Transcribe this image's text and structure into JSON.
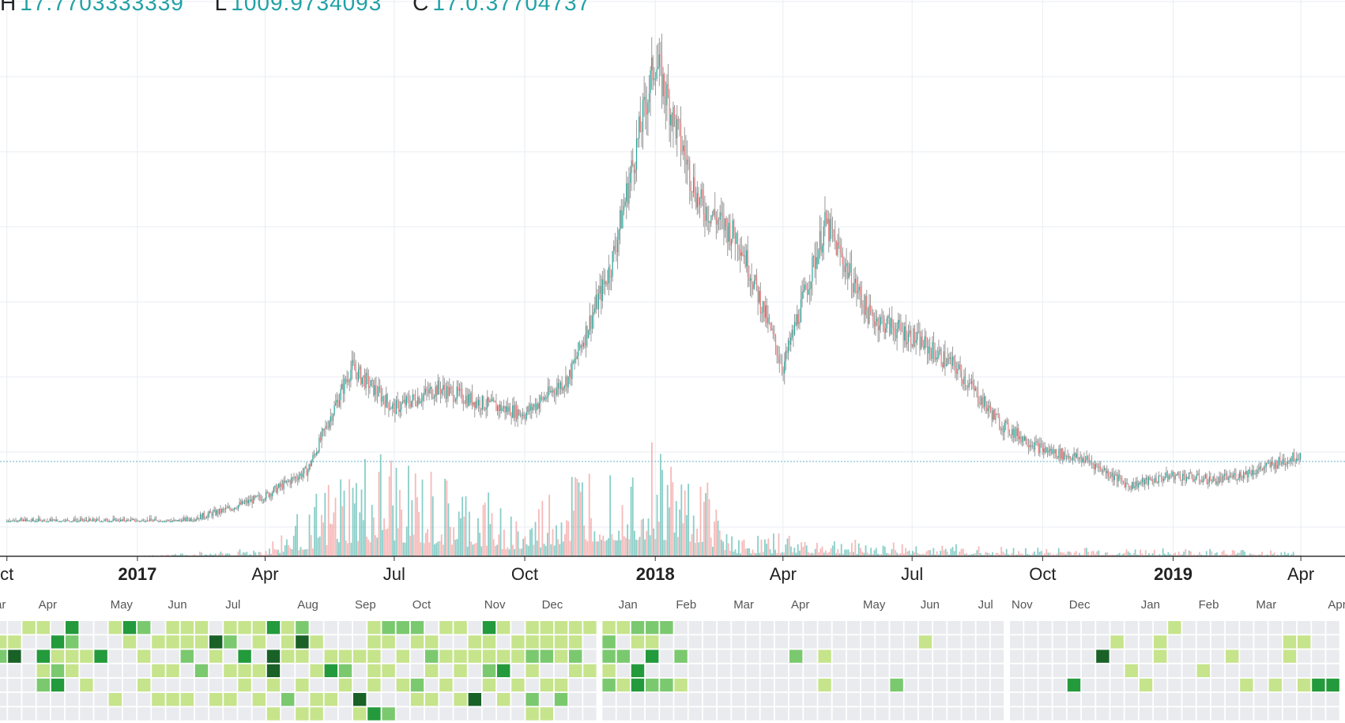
{
  "header": {
    "items": [
      {
        "key": "H",
        "value": "17.7703333339"
      },
      {
        "key": "L",
        "value": "1009.9734093"
      },
      {
        "key": "C",
        "value": "17.0.37704737"
      }
    ]
  },
  "colors": {
    "up": "#2aa59a",
    "down": "#ef7f7f",
    "grid": "#e8eef3",
    "axis_text": "#222222",
    "price_line": "#64b5c5",
    "cal_empty": "#e9ebee",
    "cal_levels": [
      "#c6e48b",
      "#7bc96f",
      "#239a3b",
      "#196127"
    ]
  },
  "chart_data": [
    {
      "type": "line",
      "title": "",
      "series_style": "candlestick with volume",
      "x_axis_labels": [
        {
          "label": "ct",
          "date": "2016-10",
          "bold": false
        },
        {
          "label": "2017",
          "date": "2017-01",
          "bold": true
        },
        {
          "label": "Apr",
          "date": "2017-04",
          "bold": false
        },
        {
          "label": "Jul",
          "date": "2017-07",
          "bold": false
        },
        {
          "label": "Oct",
          "date": "2017-10",
          "bold": false
        },
        {
          "label": "2018",
          "date": "2018-01",
          "bold": true
        },
        {
          "label": "Apr",
          "date": "2018-04",
          "bold": false
        },
        {
          "label": "Jul",
          "date": "2018-07",
          "bold": false
        },
        {
          "label": "Oct",
          "date": "2018-10",
          "bold": false
        },
        {
          "label": "2019",
          "date": "2019-01",
          "bold": true
        },
        {
          "label": "Apr",
          "date": "2019-04",
          "bold": false
        }
      ],
      "price_relative": {
        "note": "y axis unlabeled in crop; values relative to peak (1.0)",
        "x": [
          "2016-10",
          "2016-12",
          "2017-01",
          "2017-02",
          "2017-03",
          "2017-04",
          "2017-05",
          "2017-06",
          "2017-07",
          "2017-08",
          "2017-09",
          "2017-10",
          "2017-11",
          "2017-12",
          "2018-01",
          "2018-02",
          "2018-03",
          "2018-04",
          "2018-05",
          "2018-06",
          "2018-07",
          "2018-08",
          "2018-09",
          "2018-10",
          "2018-11",
          "2018-12",
          "2019-01",
          "2019-02",
          "2019-03",
          "2019-04"
        ],
        "y": [
          0.0,
          0.0,
          0.0,
          0.0,
          0.02,
          0.05,
          0.1,
          0.3,
          0.22,
          0.26,
          0.23,
          0.21,
          0.28,
          0.5,
          0.9,
          0.62,
          0.55,
          0.3,
          0.58,
          0.4,
          0.36,
          0.3,
          0.19,
          0.14,
          0.12,
          0.07,
          0.09,
          0.08,
          0.1,
          0.13
        ]
      },
      "last_price_line_relative": 0.117,
      "volume_relative": {
        "x": [
          "2016-10",
          "2017-01",
          "2017-04",
          "2017-06",
          "2017-07",
          "2017-08",
          "2017-09",
          "2017-10",
          "2017-11",
          "2017-12",
          "2018-01",
          "2018-02",
          "2018-03",
          "2018-04",
          "2018-06",
          "2018-09",
          "2019-01",
          "2019-04"
        ],
        "y": [
          0.0,
          0.0,
          0.05,
          0.5,
          0.55,
          0.4,
          0.35,
          0.2,
          0.5,
          0.6,
          0.65,
          0.5,
          0.1,
          0.12,
          0.08,
          0.05,
          0.04,
          0.03
        ]
      }
    },
    {
      "type": "heatmap",
      "title": "",
      "month_labels": [
        {
          "label": "ar",
          "col": 0
        },
        {
          "label": "Apr",
          "col": 3
        },
        {
          "label": "May",
          "col": 8
        },
        {
          "label": "Jun",
          "col": 12
        },
        {
          "label": "Jul",
          "col": 16
        },
        {
          "label": "Aug",
          "col": 21
        },
        {
          "label": "Sep",
          "col": 25
        },
        {
          "label": "Oct",
          "col": 29
        },
        {
          "label": "Nov",
          "col": 34
        },
        {
          "label": "Dec",
          "col": 38
        },
        {
          "label": "Jan",
          "col": 43
        },
        {
          "label": "Feb",
          "col": 47
        },
        {
          "label": "Mar",
          "col": 51
        },
        {
          "label": "Apr",
          "col": 55
        },
        {
          "label": "May",
          "col": 60
        },
        {
          "label": "Jun",
          "col": 64
        },
        {
          "label": "Jul",
          "col": 68
        },
        {
          "label": "Nov",
          "col": 70
        },
        {
          "label": "Dec",
          "col": 74
        },
        {
          "label": "Jan",
          "col": 79
        },
        {
          "label": "Feb",
          "col": 83
        },
        {
          "label": "Mar",
          "col": 87
        },
        {
          "label": "Apr",
          "col": 92
        }
      ],
      "rows": 7,
      "columns": 94,
      "separators_after_col": [
        41,
        69
      ],
      "cells": [
        [
          0,
          1,
          1
        ],
        [
          0,
          2,
          2
        ],
        [
          1,
          1,
          1
        ],
        [
          1,
          2,
          4
        ],
        [
          2,
          0,
          1
        ],
        [
          3,
          0,
          1
        ],
        [
          3,
          2,
          3
        ],
        [
          3,
          3,
          1
        ],
        [
          3,
          4,
          2
        ],
        [
          4,
          1,
          3
        ],
        [
          4,
          2,
          1
        ],
        [
          4,
          3,
          2
        ],
        [
          4,
          4,
          3
        ],
        [
          5,
          0,
          3
        ],
        [
          5,
          1,
          2
        ],
        [
          5,
          2,
          1
        ],
        [
          5,
          3,
          1
        ],
        [
          6,
          2,
          1
        ],
        [
          6,
          4,
          1
        ],
        [
          7,
          2,
          3
        ],
        [
          8,
          0,
          1
        ],
        [
          8,
          5,
          1
        ],
        [
          9,
          0,
          3
        ],
        [
          9,
          1,
          1
        ],
        [
          10,
          0,
          2
        ],
        [
          10,
          2,
          1
        ],
        [
          10,
          4,
          1
        ],
        [
          11,
          1,
          1
        ],
        [
          11,
          3,
          1
        ],
        [
          11,
          5,
          1
        ],
        [
          12,
          0,
          1
        ],
        [
          12,
          1,
          1
        ],
        [
          12,
          3,
          1
        ],
        [
          12,
          5,
          1
        ],
        [
          13,
          0,
          1
        ],
        [
          13,
          1,
          1
        ],
        [
          13,
          2,
          2
        ],
        [
          13,
          5,
          1
        ],
        [
          14,
          0,
          1
        ],
        [
          14,
          1,
          1
        ],
        [
          14,
          3,
          2
        ],
        [
          15,
          1,
          4
        ],
        [
          15,
          2,
          1
        ],
        [
          15,
          5,
          1
        ],
        [
          16,
          0,
          1
        ],
        [
          16,
          1,
          2
        ],
        [
          16,
          3,
          1
        ],
        [
          16,
          5,
          1
        ],
        [
          17,
          0,
          1
        ],
        [
          17,
          2,
          3
        ],
        [
          17,
          3,
          1
        ],
        [
          17,
          4,
          1
        ],
        [
          18,
          0,
          1
        ],
        [
          18,
          1,
          1
        ],
        [
          18,
          3,
          1
        ],
        [
          18,
          5,
          1
        ],
        [
          19,
          0,
          3
        ],
        [
          19,
          2,
          4
        ],
        [
          19,
          3,
          4
        ],
        [
          19,
          4,
          1
        ],
        [
          19,
          6,
          1
        ],
        [
          20,
          0,
          1
        ],
        [
          20,
          1,
          1
        ],
        [
          20,
          2,
          1
        ],
        [
          20,
          5,
          2
        ],
        [
          21,
          0,
          2
        ],
        [
          21,
          1,
          4
        ],
        [
          21,
          2,
          1
        ],
        [
          21,
          4,
          1
        ],
        [
          21,
          6,
          1
        ],
        [
          22,
          1,
          1
        ],
        [
          22,
          3,
          1
        ],
        [
          22,
          5,
          1
        ],
        [
          22,
          6,
          1
        ],
        [
          23,
          2,
          1
        ],
        [
          23,
          3,
          3
        ],
        [
          23,
          5,
          1
        ],
        [
          24,
          2,
          1
        ],
        [
          24,
          3,
          2
        ],
        [
          24,
          4,
          1
        ],
        [
          25,
          2,
          1
        ],
        [
          25,
          5,
          4
        ],
        [
          25,
          6,
          1
        ],
        [
          26,
          0,
          1
        ],
        [
          26,
          1,
          1
        ],
        [
          26,
          2,
          1
        ],
        [
          26,
          3,
          1
        ],
        [
          26,
          4,
          1
        ],
        [
          26,
          6,
          3
        ],
        [
          27,
          0,
          2
        ],
        [
          27,
          1,
          1
        ],
        [
          27,
          3,
          1
        ],
        [
          27,
          6,
          2
        ],
        [
          28,
          0,
          2
        ],
        [
          28,
          2,
          1
        ],
        [
          28,
          4,
          1
        ],
        [
          29,
          0,
          2
        ],
        [
          29,
          1,
          1
        ],
        [
          29,
          4,
          2
        ],
        [
          29,
          5,
          1
        ],
        [
          30,
          1,
          1
        ],
        [
          30,
          2,
          2
        ],
        [
          30,
          3,
          1
        ],
        [
          30,
          5,
          1
        ],
        [
          31,
          0,
          1
        ],
        [
          31,
          2,
          1
        ],
        [
          31,
          4,
          1
        ],
        [
          32,
          0,
          1
        ],
        [
          32,
          2,
          1
        ],
        [
          32,
          3,
          1
        ],
        [
          32,
          5,
          1
        ],
        [
          33,
          1,
          1
        ],
        [
          33,
          2,
          1
        ],
        [
          33,
          5,
          4
        ],
        [
          34,
          0,
          3
        ],
        [
          34,
          1,
          1
        ],
        [
          34,
          2,
          1
        ],
        [
          34,
          3,
          2
        ],
        [
          34,
          4,
          1
        ],
        [
          35,
          0,
          1
        ],
        [
          35,
          2,
          1
        ],
        [
          35,
          3,
          3
        ],
        [
          35,
          5,
          1
        ],
        [
          36,
          1,
          1
        ],
        [
          36,
          2,
          1
        ],
        [
          36,
          4,
          1
        ],
        [
          37,
          0,
          1
        ],
        [
          37,
          1,
          1
        ],
        [
          37,
          2,
          2
        ],
        [
          37,
          3,
          1
        ],
        [
          37,
          5,
          2
        ],
        [
          37,
          6,
          1
        ],
        [
          38,
          0,
          1
        ],
        [
          38,
          1,
          1
        ],
        [
          38,
          2,
          2
        ],
        [
          38,
          4,
          1
        ],
        [
          38,
          6,
          1
        ],
        [
          39,
          0,
          1
        ],
        [
          39,
          1,
          1
        ],
        [
          39,
          2,
          1
        ],
        [
          39,
          4,
          1
        ],
        [
          39,
          5,
          2
        ],
        [
          40,
          0,
          1
        ],
        [
          40,
          1,
          1
        ],
        [
          40,
          2,
          2
        ],
        [
          40,
          3,
          1
        ],
        [
          41,
          0,
          1
        ],
        [
          41,
          3,
          1
        ],
        [
          42,
          0,
          1
        ],
        [
          42,
          1,
          2
        ],
        [
          42,
          2,
          2
        ],
        [
          42,
          3,
          1
        ],
        [
          42,
          4,
          2
        ],
        [
          43,
          0,
          1
        ],
        [
          43,
          2,
          2
        ],
        [
          43,
          4,
          1
        ],
        [
          44,
          0,
          2
        ],
        [
          44,
          1,
          1
        ],
        [
          44,
          3,
          3
        ],
        [
          44,
          4,
          3
        ],
        [
          45,
          0,
          2
        ],
        [
          45,
          1,
          1
        ],
        [
          45,
          2,
          3
        ],
        [
          45,
          4,
          2
        ],
        [
          46,
          0,
          2
        ],
        [
          46,
          4,
          2
        ],
        [
          47,
          2,
          2
        ],
        [
          47,
          4,
          1
        ],
        [
          55,
          2,
          2
        ],
        [
          57,
          2,
          1
        ],
        [
          57,
          4,
          1
        ],
        [
          62,
          4,
          2
        ],
        [
          64,
          1,
          1
        ],
        [
          74,
          4,
          3
        ],
        [
          76,
          2,
          4
        ],
        [
          77,
          1,
          1
        ],
        [
          78,
          3,
          1
        ],
        [
          79,
          4,
          1
        ],
        [
          80,
          1,
          1
        ],
        [
          80,
          2,
          1
        ],
        [
          81,
          0,
          1
        ],
        [
          83,
          3,
          1
        ],
        [
          85,
          2,
          1
        ],
        [
          86,
          4,
          1
        ],
        [
          88,
          4,
          1
        ],
        [
          89,
          1,
          1
        ],
        [
          89,
          2,
          1
        ],
        [
          90,
          1,
          1
        ],
        [
          90,
          4,
          1
        ],
        [
          91,
          4,
          3
        ],
        [
          92,
          4,
          3
        ],
        [
          93,
          0,
          1
        ],
        [
          93,
          1,
          2
        ],
        [
          93,
          2,
          4
        ],
        [
          93,
          3,
          1
        ],
        [
          93,
          4,
          3
        ],
        [
          94,
          1,
          2
        ],
        [
          94,
          2,
          2
        ],
        [
          94,
          3,
          1
        ],
        [
          95,
          0,
          2
        ],
        [
          95,
          1,
          2
        ],
        [
          95,
          2,
          3
        ],
        [
          96,
          0,
          1
        ]
      ]
    }
  ]
}
